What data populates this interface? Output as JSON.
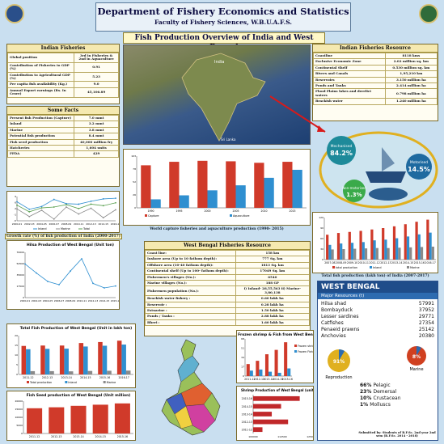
{
  "header": {
    "title": "Department of Fishery Economics and Statistics",
    "faculty": "Faculty of Fishery Sciences, W.B.U.A.F.S.",
    "subtitle": "Fish Production Overview of India and West Bengal"
  },
  "indian_fisheries": {
    "title": "Indian Fisheries",
    "rows": [
      {
        "label": "Global position",
        "value": "3rd in Fisheries & 2nd in Aquaculture"
      },
      {
        "label": "Contribution of Fisheries to GDP (%)",
        "value": "0.91"
      },
      {
        "label": "Contribution to Agricultural GDP (%)",
        "value": "5.23"
      },
      {
        "label": "Per capita fish availability (Kg.)",
        "value": "9.0"
      },
      {
        "label": "Annual Export earnings (Rs. In Crore)",
        "value": "45,106.89"
      }
    ]
  },
  "some_facts": {
    "title": "Some Facts",
    "rows": [
      {
        "label": "Present fish Production (Capture)",
        "value": "7.0 mmt"
      },
      {
        "label": "Inland",
        "value": "3.2 mmt"
      },
      {
        "label": "Marine",
        "value": "3.8 mmt"
      },
      {
        "label": "Potential fish production",
        "value": "8.4 mmt"
      },
      {
        "label": "Fish seed production",
        "value": "40,000 million fry"
      },
      {
        "label": "Hatcheries",
        "value": "1,604 units"
      },
      {
        "label": "FFDA",
        "value": "429"
      }
    ]
  },
  "resources": {
    "title": "Indian Fisheries Resource",
    "rows": [
      {
        "label": "Coastline",
        "value": "8118 kms"
      },
      {
        "label": "Exclusive Economic Zone",
        "value": "2.02 million sq. km"
      },
      {
        "label": "Continental Shelf",
        "value": "0.530 million sq. km"
      },
      {
        "label": "Rivers and Canals",
        "value": "1,95,210 km"
      },
      {
        "label": "Reservoirs",
        "value": "3.150 million ha"
      },
      {
        "label": "Ponds and Tanks",
        "value": "2.414 million ha"
      },
      {
        "label": "Flood Plains lakes and derelict waters",
        "value": "0.798 million ha"
      },
      {
        "label": "Brackish water",
        "value": "1.240 million ha"
      }
    ]
  },
  "map_labels": {
    "country": "India",
    "city": "Sri Lanka"
  },
  "fish_infographic": [
    {
      "name": "Mechanised",
      "value": "84.2%"
    },
    {
      "name": "Motorised",
      "value": "14.5%"
    },
    {
      "name": "Non-motorised",
      "value": "1.3%"
    }
  ],
  "wb_resources": {
    "title": "West Bengal Fisheries Resource",
    "rows": [
      {
        "label": "Coast line:",
        "value": "158 km"
      },
      {
        "label": "Inshore area (Up to 10 fathom depth):",
        "value": "777 Sq. km"
      },
      {
        "label": "Offshore area (10-40 fathom depth):",
        "value": "1813 Sq. km"
      },
      {
        "label": "Continental shelf (Up to 100- fathom depth):",
        "value": "17049 Sq. km"
      },
      {
        "label": "Fishermen's villages (No.):",
        "value": "6540"
      },
      {
        "label": "Marine villages (No.):",
        "value": "188 GP"
      },
      {
        "label": "Fishermen population (No.):",
        "value": "i) Inland- 28,55,563  ii) Marine- 3,80,138"
      },
      {
        "label": "Brackish water fishery :",
        "value": "0.60 lakh ha"
      },
      {
        "label": "Reservoir :",
        "value": "0.28 lakh ha"
      },
      {
        "label": "Estuarine :",
        "value": "1.50 lakh ha"
      },
      {
        "label": "Ponds / Tanks :",
        "value": "2.88 lakh ha"
      },
      {
        "label": "Bheri :",
        "value": "1.60 lakh ha"
      }
    ]
  },
  "west_bengal_box": {
    "title": "WEST BENGAL",
    "subtitle": "Major Resources (t)",
    "items": [
      {
        "name": "Hilsa shad",
        "value": "57991"
      },
      {
        "name": "Bombayduck",
        "value": "37952"
      },
      {
        "name": "Lesser sardines",
        "value": "29771"
      },
      {
        "name": "Catfishes",
        "value": "27354"
      },
      {
        "name": "Penaeid prawns",
        "value": "25142"
      },
      {
        "name": "Anchovies",
        "value": "20380"
      }
    ],
    "pie_labels": [
      {
        "name": "Marine",
        "value": "8%"
      },
      {
        "name": "Reproduction",
        "value": "91%"
      }
    ],
    "mix": [
      {
        "pct": "66%",
        "name": "Pelagic"
      },
      {
        "pct": "23%",
        "name": "Demersal"
      },
      {
        "pct": "10%",
        "name": "Crustacean"
      },
      {
        "pct": "1%",
        "name": "Molluscs"
      }
    ],
    "submitted": "Submitted by: Students of B.F.Sc. 2nd year 2nd sem (B.F.Sc. 2014 - 2018)"
  },
  "captions": {
    "growth": "Growth rate (%) of fish production of India (2000-2017)",
    "world": "World capture fisheries and aquaculture production (1990- 2015)",
    "total_india": "Total fish production (lakh ton) of India (2007-2017)"
  },
  "chart_data": [
    {
      "type": "line",
      "title": "",
      "categories": [
        "2000-01",
        "2002-03",
        "2004-05",
        "2006-07",
        "2008-09",
        "2010-11",
        "2012-13",
        "2014-15",
        "2016-17"
      ],
      "series": [
        {
          "name": "Inland",
          "values": [
            6.2,
            1.8,
            3.4,
            7.6,
            5.1,
            4.8,
            6.5,
            7.9,
            8.3
          ]
        },
        {
          "name": "Marine",
          "values": [
            2.0,
            -2.5,
            1.2,
            -4.0,
            3.1,
            -1.0,
            2.4,
            -3.2,
            1.5
          ]
        },
        {
          "name": "Total",
          "values": [
            4.2,
            0.3,
            2.6,
            3.1,
            4.5,
            2.2,
            4.8,
            3.9,
            5.6
          ]
        }
      ],
      "legend": "bottom"
    },
    {
      "type": "bar",
      "title": "World capture fisheries and aquaculture production (1990- 2015)",
      "categories": [
        "1990",
        "1995",
        "2000",
        "2005",
        "2010",
        "2015"
      ],
      "series": [
        {
          "name": "Capture",
          "values": [
            85,
            92,
            94,
            93,
            90,
            92
          ]
        },
        {
          "name": "Aquaculture",
          "values": [
            17,
            25,
            35,
            45,
            60,
            76
          ]
        }
      ]
    },
    {
      "type": "bar",
      "title": "Total fish production (lakh ton) of India (2007-2017)",
      "categories": [
        "2007-08",
        "2008-09",
        "2009-10",
        "2010-11",
        "2011-12",
        "2012-13",
        "2013-14",
        "2014-15",
        "2015-16",
        "2016-17"
      ],
      "series": [
        {
          "name": "total production",
          "values": [
            71,
            76,
            79,
            82,
            86,
            90,
            95,
            101,
            108,
            114
          ]
        },
        {
          "name": "Inland",
          "values": [
            42,
            46,
            48,
            50,
            55,
            57,
            61,
            66,
            72,
            77
          ]
        },
        {
          "name": "Marine",
          "values": [
            29,
            30,
            31,
            32,
            33,
            33,
            34,
            35,
            36,
            37
          ]
        }
      ],
      "ylim": [
        0,
        120
      ],
      "legend": "bottom"
    },
    {
      "type": "line",
      "title": "Hilsa Production of West Bengal (Unit ton)",
      "categories": [
        "2000-01",
        "2002-03",
        "2004-05",
        "2006-07",
        "2008-09",
        "2010-11",
        "2012-13",
        "2014-15",
        "2015-16"
      ],
      "values": [
        52000,
        38000,
        25000,
        20000,
        41000,
        60000,
        22000,
        15000,
        18000
      ],
      "ylim": [
        0,
        70000
      ]
    },
    {
      "type": "bar",
      "title": "Total Fish Production of West Bengal (Unit in lakh ton)",
      "categories": [
        "2011-12",
        "2012-13",
        "2013-14",
        "2014-15",
        "2015-16",
        "2016-17"
      ],
      "series": [
        {
          "name": "Total production",
          "values": [
            14.7,
            14.9,
            14.9,
            16.2,
            16.7,
            17.4
          ]
        },
        {
          "name": "Inland",
          "values": [
            13.0,
            13.2,
            13.3,
            14.4,
            14.8,
            15.4
          ]
        },
        {
          "name": "Marine",
          "values": [
            1.7,
            1.7,
            1.6,
            1.8,
            1.9,
            2.0
          ]
        }
      ],
      "ylim": [
        0,
        20
      ],
      "legend": "bottom"
    },
    {
      "type": "bar",
      "title": "Fish Seed production of West Bengal (Unit million)",
      "categories": [
        "2011-12",
        "2012-13",
        "2013-14",
        "2014-15",
        "2015-16"
      ],
      "values": [
        15600,
        16200,
        17100,
        17800,
        18600
      ],
      "ylim": [
        0,
        20000
      ]
    },
    {
      "type": "bar",
      "title": "Export of Frozen shrimp & Fish from West Bengal",
      "categories": [
        "2011-12",
        "2012-13",
        "2013-14",
        "2014-15",
        "2015-16"
      ],
      "series": [
        {
          "name": "Frozen shrimp",
          "values": [
            22,
            28,
            40,
            48,
            62
          ]
        },
        {
          "name": "Frozen Fish",
          "values": [
            10,
            12,
            8,
            6,
            14
          ]
        }
      ],
      "legend": "right"
    },
    {
      "type": "bar",
      "title": "Shrimp Production of West Bengal (unit: ton)",
      "categories": [
        "2015-16",
        "2014-15",
        "2013-14",
        "2012-13",
        "2011-12"
      ],
      "values": [
        120000,
        112000,
        108000,
        115000,
        104000
      ],
      "xlim": [
        100000,
        125000
      ]
    }
  ]
}
